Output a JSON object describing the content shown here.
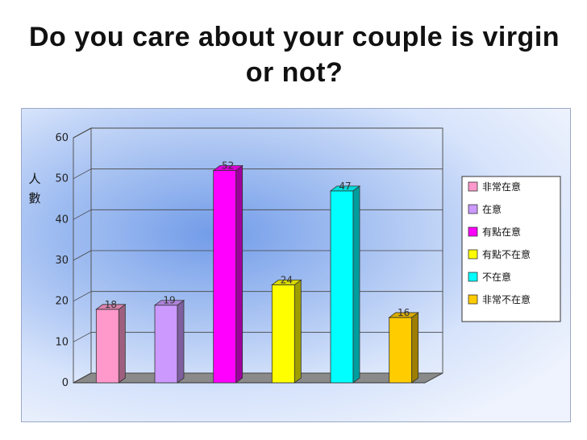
{
  "title": "Do you care about your couple is virgin or not?",
  "chart_data": {
    "type": "bar",
    "categories": [
      "非常在意",
      "在意",
      "有點在意",
      "有點不在意",
      "不在意",
      "非常不在意"
    ],
    "values": [
      18,
      19,
      52,
      24,
      47,
      16
    ],
    "colors": [
      "#ff99cc",
      "#cc99ff",
      "#ff00ff",
      "#ffff00",
      "#00ffff",
      "#ffcc00"
    ],
    "ylabel": "人數",
    "ylim": [
      0,
      60
    ],
    "yticks": [
      "0",
      "10",
      "20",
      "30",
      "40",
      "50",
      "60"
    ],
    "legend_position": "right",
    "grid": true,
    "three_d": true
  }
}
